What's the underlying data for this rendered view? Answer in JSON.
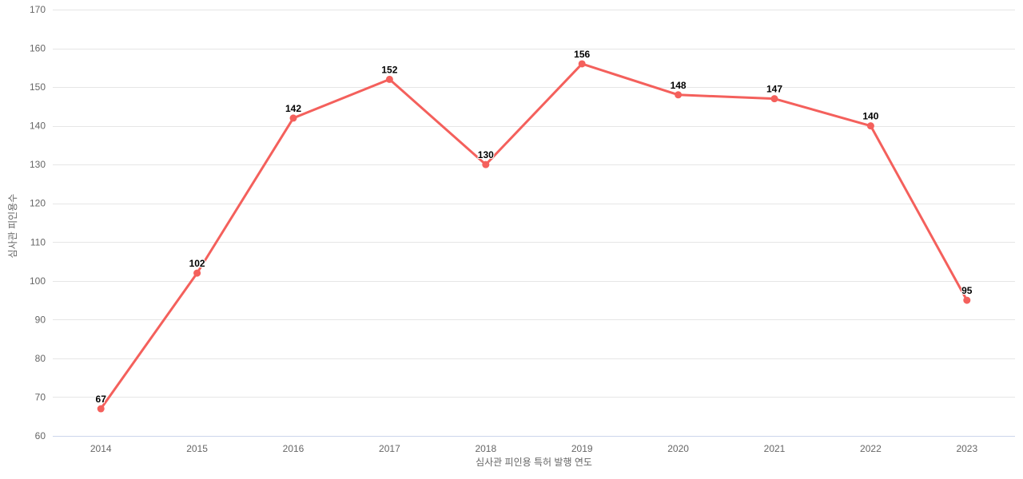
{
  "chart_data": {
    "type": "line",
    "categories": [
      "2014",
      "2015",
      "2016",
      "2017",
      "2018",
      "2019",
      "2020",
      "2021",
      "2022",
      "2023"
    ],
    "values": [
      67,
      102,
      142,
      152,
      130,
      156,
      148,
      147,
      140,
      95
    ],
    "title": "",
    "xlabel": "심사관 피인용 특허 발행 연도",
    "ylabel": "심사관 피인용수",
    "ylim": [
      60,
      170
    ],
    "ytick_step": 10,
    "yticks": [
      60,
      70,
      80,
      90,
      100,
      110,
      120,
      130,
      140,
      150,
      160,
      170
    ],
    "grid": true,
    "legend": "none",
    "series_name": "심사관 피인용수",
    "colors": {
      "line": "#f4605c",
      "marker": "#f4605c",
      "grid": "#e6e6e6",
      "axis_line": "#ccd6eb",
      "tick_label": "#666666",
      "axis_title": "#666666",
      "data_label": "#000000",
      "background": "#ffffff"
    }
  }
}
